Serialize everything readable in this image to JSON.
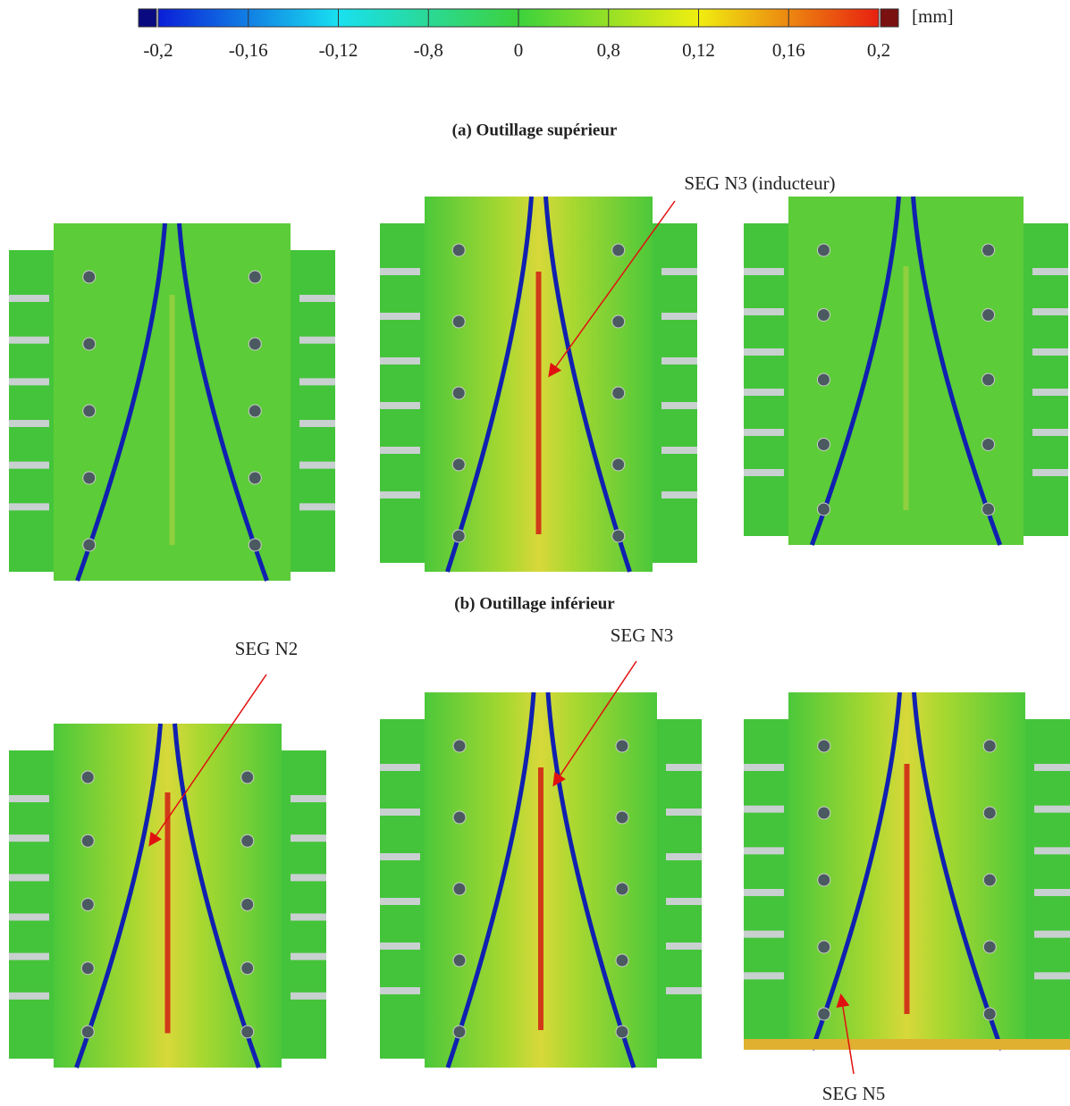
{
  "colorbar": {
    "tick_labels": [
      "-0,2",
      "-0,16",
      "-0,12",
      "-0,8",
      "0",
      "0,8",
      "0,12",
      "0,16",
      "0,2"
    ],
    "unit": "[mm]"
  },
  "captions": [
    "(a) Outillage supérieur",
    "(b) Outillage inférieur"
  ],
  "annotations": [
    "SEG N3 (inducteur)",
    "SEG N2",
    "SEG N3",
    "SEG N5"
  ]
}
